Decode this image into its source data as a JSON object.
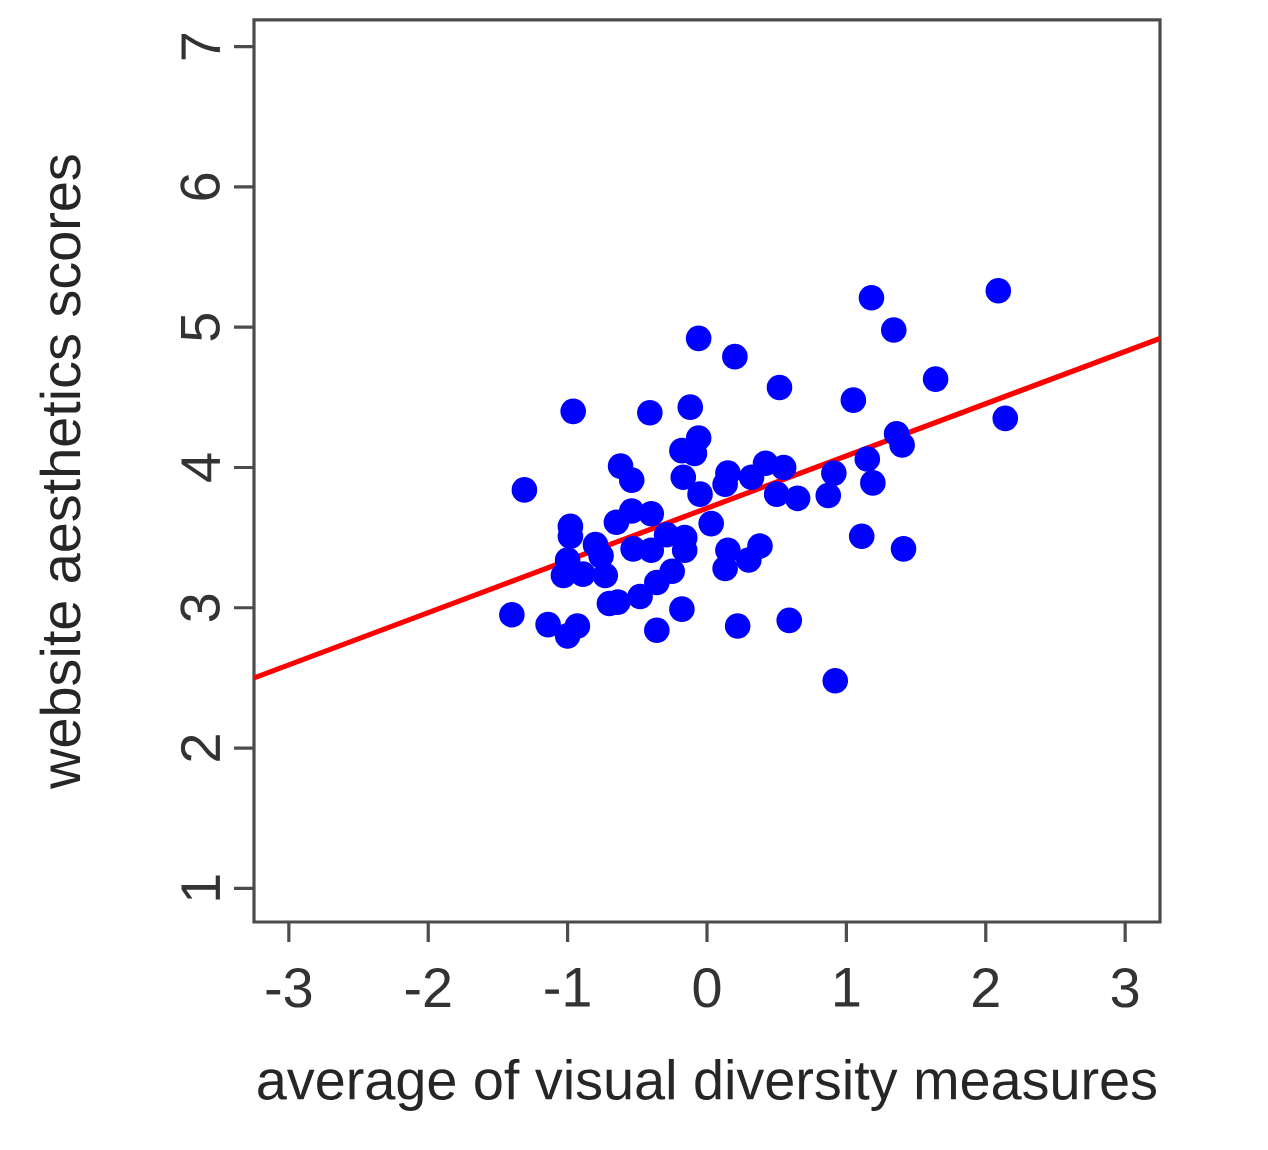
{
  "chart_data": {
    "type": "scatter",
    "xlabel": "average of visual diversity measures",
    "ylabel": "website aesthetics scores",
    "xlim": [
      -3.25,
      3.25
    ],
    "ylim": [
      0.76,
      7.19
    ],
    "xticks": [
      -3,
      -2,
      -1,
      0,
      1,
      2,
      3
    ],
    "yticks": [
      1,
      2,
      3,
      4,
      5,
      6,
      7
    ],
    "series": [
      {
        "marker": "circle",
        "color": "#0000ff",
        "x": [
          -0.06,
          0.2,
          -0.96,
          -0.41,
          -0.12,
          -0.06,
          -0.18,
          -0.09,
          -0.62,
          -0.54,
          -0.17,
          -1.31,
          -0.05,
          0.13,
          0.15,
          0.32,
          -0.54,
          -0.4,
          -0.65,
          0.03,
          -0.98,
          -0.98,
          -0.8,
          -0.53,
          -0.4,
          -0.29,
          -0.16,
          -0.16,
          -0.76,
          -1.0,
          0.15,
          0.13,
          0.3,
          -1.03,
          -0.89,
          -0.73,
          -0.25,
          -0.36,
          -0.48,
          -0.7,
          -0.64,
          -0.18,
          -1.4,
          -1.14,
          -0.93,
          -1.0,
          -0.36,
          0.22,
          1.18,
          2.09,
          1.34,
          0.52,
          1.64,
          1.05,
          2.14,
          1.36,
          1.4,
          1.15,
          0.42,
          0.55,
          0.91,
          1.19,
          0.5,
          0.65,
          0.87,
          1.11,
          1.41,
          0.38,
          0.59,
          0.92
        ],
        "values": [
          4.92,
          4.79,
          4.4,
          4.39,
          4.43,
          4.21,
          4.12,
          4.1,
          4.01,
          3.91,
          3.93,
          3.84,
          3.81,
          3.88,
          3.96,
          3.93,
          3.69,
          3.67,
          3.61,
          3.6,
          3.58,
          3.51,
          3.45,
          3.42,
          3.41,
          3.52,
          3.5,
          3.41,
          3.37,
          3.34,
          3.41,
          3.28,
          3.34,
          3.23,
          3.24,
          3.23,
          3.26,
          3.18,
          3.08,
          3.03,
          3.04,
          2.99,
          2.95,
          2.88,
          2.87,
          2.8,
          2.84,
          2.87,
          5.21,
          5.26,
          4.98,
          4.57,
          4.63,
          4.48,
          4.35,
          4.24,
          4.16,
          4.06,
          4.03,
          4.0,
          3.96,
          3.89,
          3.81,
          3.78,
          3.8,
          3.51,
          3.42,
          3.44,
          2.91,
          2.48
        ]
      },
      {
        "type": "line",
        "color": "#ff0000",
        "marker": "none",
        "x": [
          -3.25,
          3.25
        ],
        "values": [
          2.5,
          4.92
        ]
      }
    ]
  }
}
